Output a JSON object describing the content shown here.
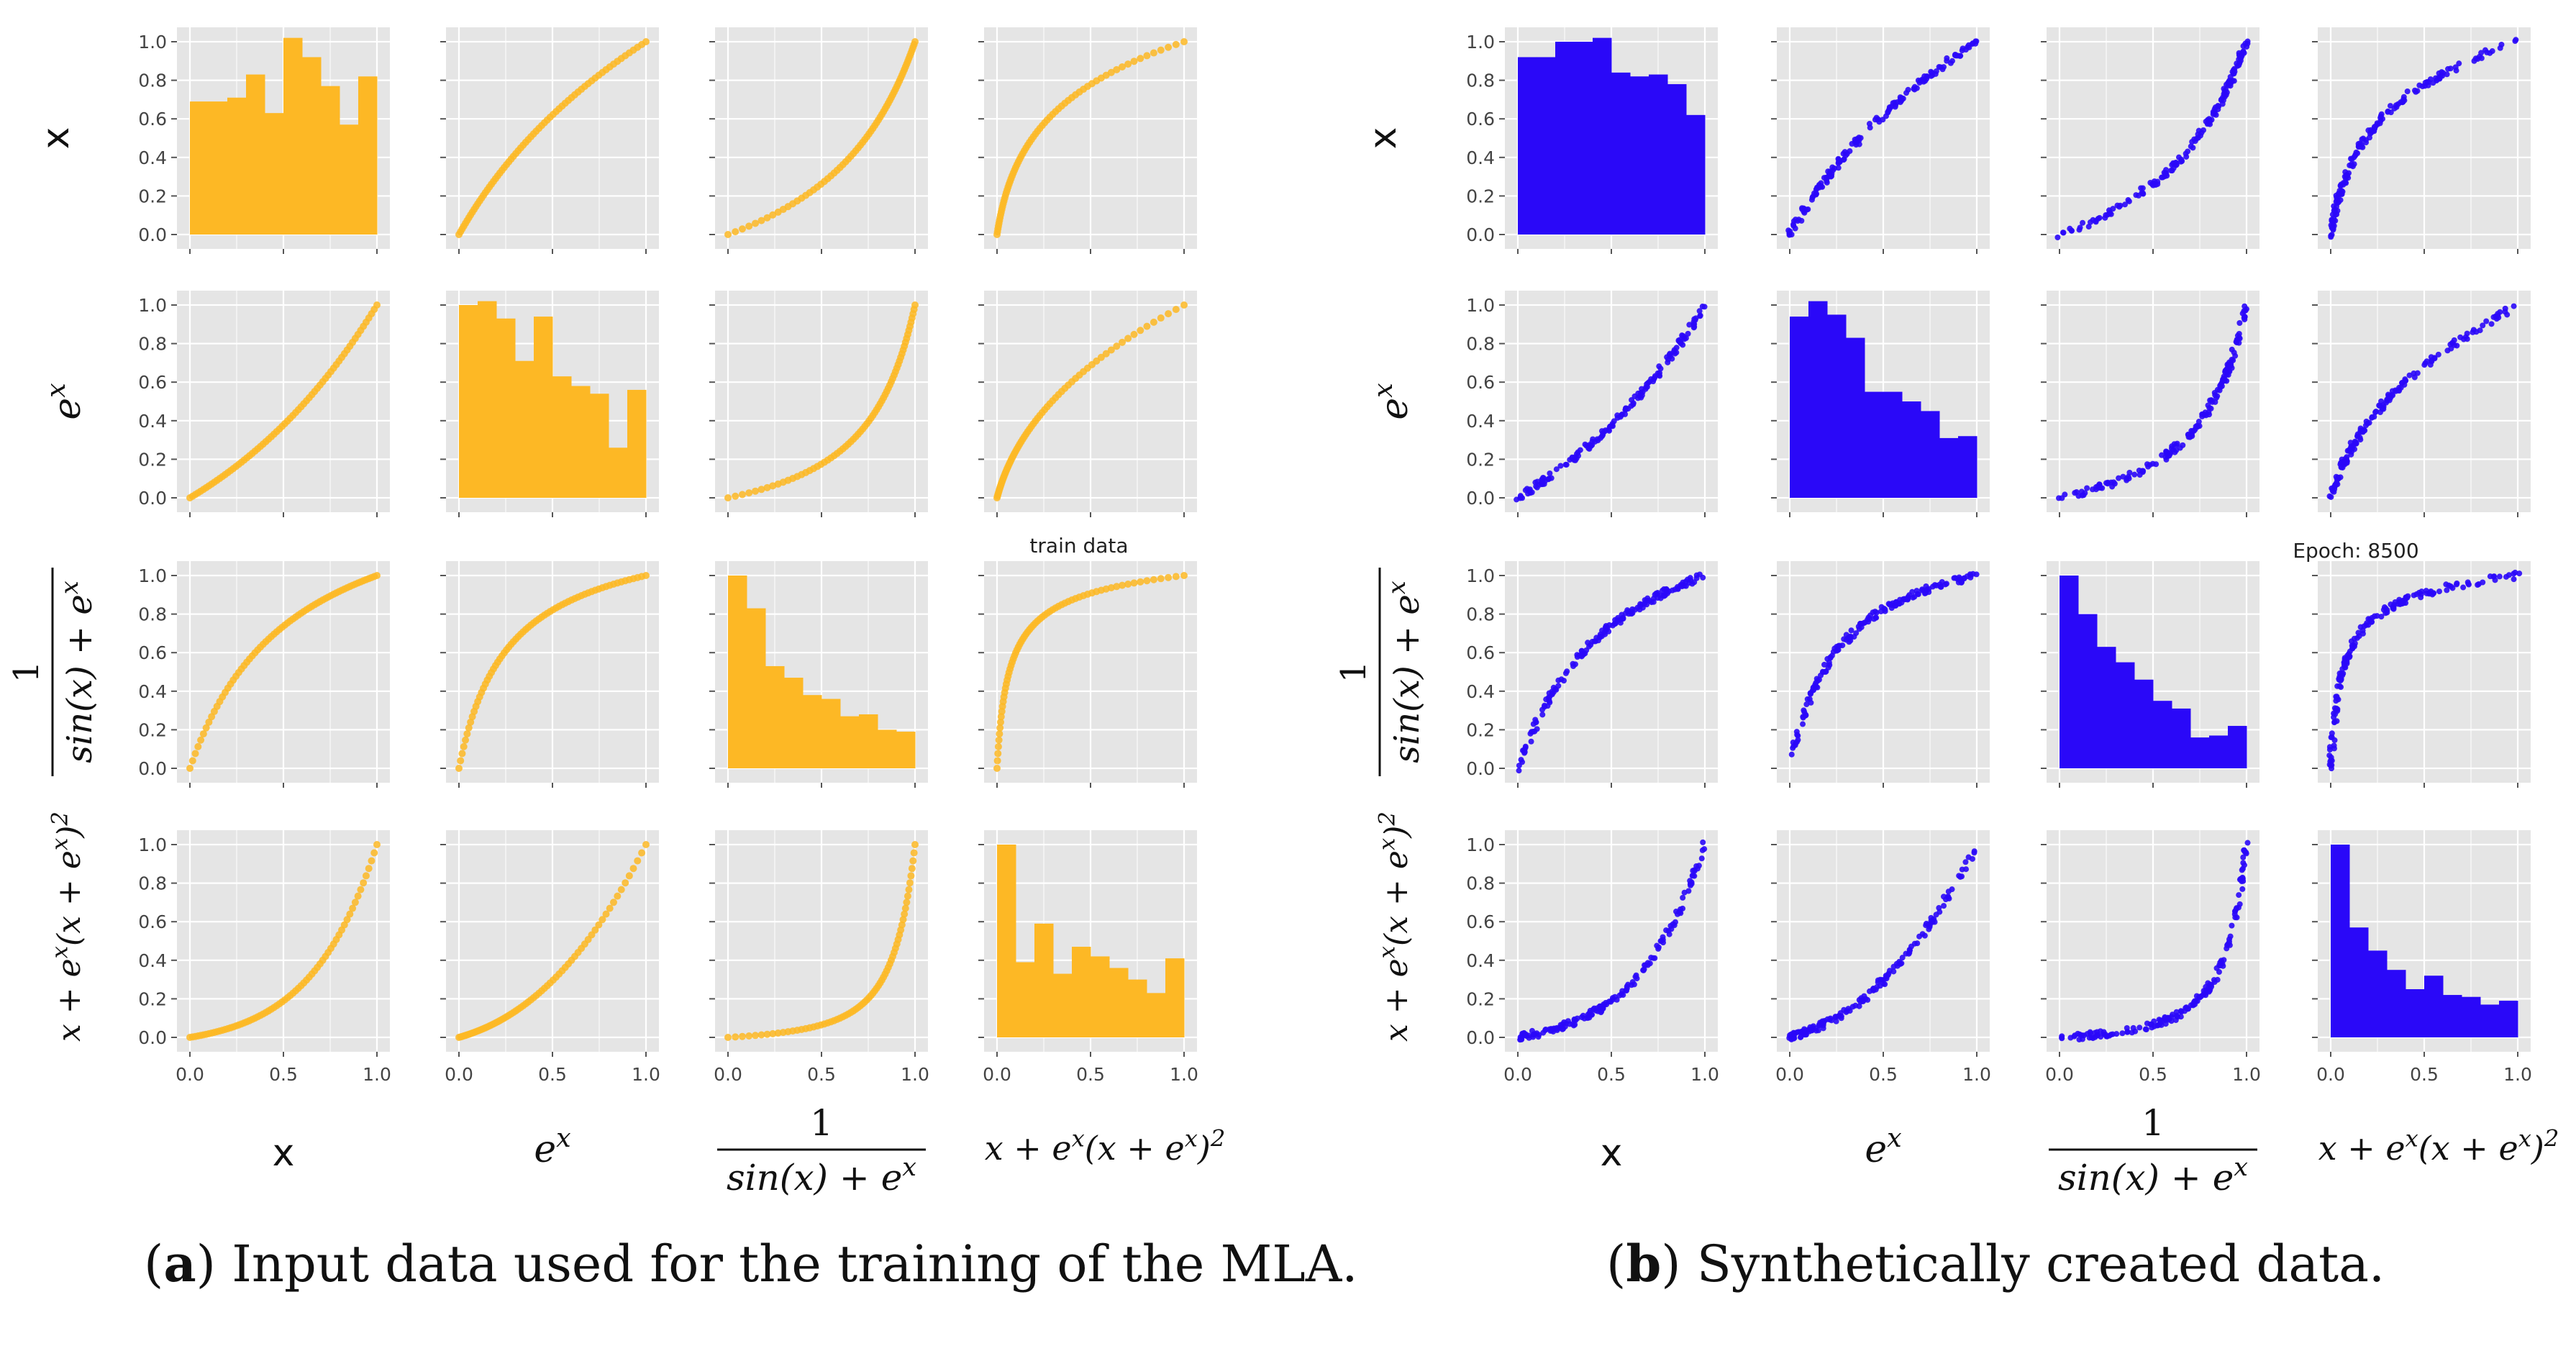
{
  "colors": {
    "train": "#FDB825",
    "synthetic": "#2A08F8",
    "panel_bg": "#E5E5E5",
    "grid": "#FFFFFF",
    "tick_text": "#444444"
  },
  "variables": [
    "x",
    "e^x",
    "1/(sin(x)+e^x)",
    "x+e^x(x+e^x)^2"
  ],
  "axis_ticks": [
    "0.0",
    "0.2",
    "0.4",
    "0.6",
    "0.8",
    "1.0"
  ],
  "axis_ticks_x": [
    "0.0",
    "0.5",
    "1.0"
  ],
  "labels": {
    "row_x": "x",
    "e": "e",
    "exp_x": "x",
    "one": "1",
    "sin_den": "sin(x) + e",
    "poly_a": "x + e",
    "poly_b": "(x + e",
    "poly_c": ")",
    "sq": "2"
  },
  "caption_a": {
    "letter": "a",
    "text": ") Input data used for the training of the MLA.",
    "open": "("
  },
  "caption_b": {
    "letter": "b",
    "text": ") Synthetically created data.",
    "open": "("
  },
  "chart_data": [
    {
      "type": "scatter-matrix",
      "title": "train data",
      "color_name": "orange",
      "variables": [
        "x",
        "e^x",
        "1/(sin(x)+e^x)",
        "x+e^x(x+e^x)^2"
      ],
      "xlim": [
        0,
        1
      ],
      "ylim": [
        0,
        1
      ],
      "histograms": [
        [
          0.69,
          0.69,
          0.71,
          0.83,
          0.63,
          1.02,
          0.92,
          0.77,
          0.57,
          0.82
        ],
        [
          1.0,
          1.02,
          0.93,
          0.71,
          0.94,
          0.63,
          0.58,
          0.54,
          0.26,
          0.56
        ],
        [
          1.0,
          0.83,
          0.53,
          0.47,
          0.38,
          0.36,
          0.27,
          0.28,
          0.2,
          0.19
        ],
        [
          1.0,
          0.39,
          0.59,
          0.33,
          0.47,
          0.42,
          0.36,
          0.3,
          0.23,
          0.41
        ]
      ],
      "scatter_noise": 0
    },
    {
      "type": "scatter-matrix",
      "title": "Epoch: 8500",
      "color_name": "blue",
      "variables": [
        "x",
        "e^x",
        "1/(sin(x)+e^x)",
        "x+e^x(x+e^x)^2"
      ],
      "xlim": [
        0,
        1
      ],
      "ylim": [
        0,
        1
      ],
      "histograms": [
        [
          0.92,
          0.92,
          1.0,
          1.0,
          1.02,
          0.84,
          0.82,
          0.83,
          0.78,
          0.62
        ],
        [
          0.94,
          1.02,
          0.95,
          0.83,
          0.55,
          0.55,
          0.5,
          0.45,
          0.31,
          0.32
        ],
        [
          1.0,
          0.8,
          0.63,
          0.55,
          0.46,
          0.35,
          0.31,
          0.16,
          0.17,
          0.22
        ],
        [
          1.0,
          0.57,
          0.45,
          0.35,
          0.25,
          0.32,
          0.22,
          0.21,
          0.17,
          0.19
        ]
      ],
      "scatter_noise": 0.012
    }
  ]
}
